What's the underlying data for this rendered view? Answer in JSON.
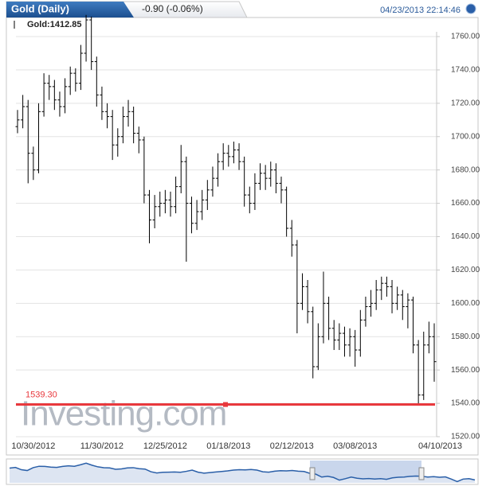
{
  "chart_data": {
    "type": "ohlc",
    "title": "Gold (Daily)",
    "change": "-0.90 (-0.06%)",
    "timestamp": "04/23/2013 22:14:46",
    "legend_label": "Gold:1412.85",
    "watermark": "Investing.com",
    "color": "#000000",
    "categories": [
      null,
      null,
      null,
      "10/30/2012",
      null,
      null,
      null,
      null,
      null,
      null,
      null,
      null,
      null,
      null,
      null,
      null,
      "11/30/2012",
      null,
      null,
      null,
      null,
      null,
      null,
      null,
      null,
      null,
      null,
      null,
      "12/25/2012",
      null,
      null,
      null,
      null,
      null,
      null,
      null,
      null,
      null,
      null,
      null,
      "01/18/2013",
      null,
      null,
      null,
      null,
      null,
      null,
      null,
      null,
      null,
      null,
      null,
      "02/12/2013",
      null,
      null,
      null,
      null,
      null,
      null,
      null,
      null,
      null,
      null,
      null,
      "03/08/2013",
      null,
      null,
      null,
      null,
      null,
      null,
      null,
      null,
      null,
      null,
      null,
      null,
      null,
      null,
      "04/10/2013"
    ],
    "open": [
      1706,
      1710,
      1718,
      1690,
      1680,
      1715,
      1732,
      1730,
      1722,
      1718,
      1730,
      1738,
      1732,
      1750,
      1770,
      1745,
      1725,
      1715,
      1712,
      1695,
      1700,
      1712,
      1715,
      1702,
      1698,
      1665,
      1650,
      1658,
      1660,
      1662,
      1658,
      1670,
      1685,
      1660,
      1648,
      1655,
      1662,
      1668,
      1675,
      1685,
      1690,
      1688,
      1692,
      1685,
      1665,
      1660,
      1672,
      1678,
      1675,
      1680,
      1672,
      1668,
      1645,
      1635,
      1600,
      1610,
      1595,
      1562,
      1580,
      1600,
      1585,
      1578,
      1582,
      1575,
      1580,
      1572,
      1590,
      1598,
      1600,
      1608,
      1612,
      1610,
      1600,
      1605,
      1598,
      1602,
      1575,
      1545,
      1575,
      1580
    ],
    "high": [
      1716,
      1725,
      1722,
      1694,
      1720,
      1738,
      1737,
      1734,
      1727,
      1735,
      1742,
      1741,
      1755,
      1773,
      1772,
      1748,
      1730,
      1720,
      1716,
      1705,
      1718,
      1722,
      1718,
      1706,
      1700,
      1668,
      1665,
      1667,
      1668,
      1667,
      1676,
      1695,
      1688,
      1664,
      1662,
      1668,
      1674,
      1682,
      1690,
      1696,
      1695,
      1697,
      1696,
      1688,
      1670,
      1678,
      1684,
      1683,
      1685,
      1684,
      1676,
      1670,
      1650,
      1638,
      1618,
      1614,
      1598,
      1588,
      1619,
      1604,
      1590,
      1588,
      1586,
      1585,
      1584,
      1596,
      1604,
      1608,
      1614,
      1616,
      1616,
      1614,
      1610,
      1608,
      1606,
      1604,
      1578,
      1583,
      1589,
      1588
    ],
    "low": [
      1702,
      1705,
      1672,
      1674,
      1678,
      1712,
      1722,
      1716,
      1712,
      1714,
      1725,
      1727,
      1728,
      1745,
      1740,
      1718,
      1710,
      1705,
      1686,
      1688,
      1696,
      1706,
      1696,
      1690,
      1660,
      1636,
      1645,
      1652,
      1654,
      1652,
      1654,
      1666,
      1625,
      1642,
      1644,
      1650,
      1656,
      1664,
      1670,
      1680,
      1682,
      1684,
      1680,
      1658,
      1654,
      1656,
      1668,
      1668,
      1670,
      1666,
      1660,
      1640,
      1628,
      1582,
      1596,
      1588,
      1555,
      1560,
      1576,
      1578,
      1572,
      1572,
      1568,
      1568,
      1562,
      1568,
      1586,
      1592,
      1596,
      1602,
      1604,
      1594,
      1596,
      1590,
      1585,
      1570,
      1539,
      1542,
      1570,
      1553
    ],
    "close": [
      1710,
      1718,
      1690,
      1680,
      1715,
      1732,
      1730,
      1722,
      1718,
      1730,
      1738,
      1732,
      1750,
      1770,
      1745,
      1725,
      1715,
      1712,
      1695,
      1700,
      1712,
      1715,
      1702,
      1698,
      1665,
      1650,
      1658,
      1660,
      1662,
      1658,
      1670,
      1685,
      1660,
      1648,
      1655,
      1662,
      1668,
      1675,
      1685,
      1690,
      1688,
      1692,
      1685,
      1665,
      1660,
      1672,
      1678,
      1675,
      1680,
      1672,
      1668,
      1645,
      1635,
      1600,
      1610,
      1595,
      1562,
      1580,
      1600,
      1585,
      1578,
      1582,
      1575,
      1580,
      1572,
      1590,
      1598,
      1600,
      1608,
      1612,
      1610,
      1600,
      1605,
      1598,
      1602,
      1575,
      1545,
      1575,
      1580,
      1565
    ],
    "price_line": {
      "value": 1539.3,
      "label": "1539.30",
      "color": "#e8383d"
    },
    "ylim": [
      1520,
      1760
    ],
    "yticks": [
      {
        "value": 1520,
        "label": "1520.00"
      },
      {
        "value": 1540,
        "label": "1540.00"
      },
      {
        "value": 1560,
        "label": "1560.00"
      },
      {
        "value": 1580,
        "label": "1580.00"
      },
      {
        "value": 1600,
        "label": "1600.00"
      },
      {
        "value": 1620,
        "label": "1620.00"
      },
      {
        "value": 1640,
        "label": "1640.00"
      },
      {
        "value": 1660,
        "label": "1660.00"
      },
      {
        "value": 1680,
        "label": "1680.00"
      },
      {
        "value": 1700,
        "label": "1700.00"
      },
      {
        "value": 1720,
        "label": "1720.00"
      },
      {
        "value": 1740,
        "label": "1740.00"
      },
      {
        "value": 1760,
        "label": "1760.00"
      }
    ],
    "grid": true
  }
}
